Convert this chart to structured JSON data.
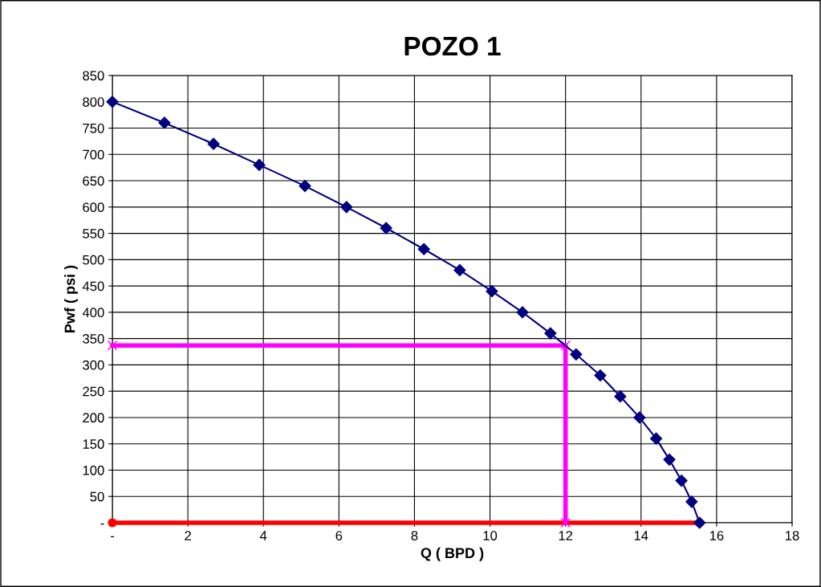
{
  "chart_data": {
    "type": "line",
    "title": "POZO 1",
    "xlabel": "Q ( BPD )",
    "ylabel": "Pwf ( psi )",
    "series": [
      {
        "color": "#ff0000",
        "marker": "circle",
        "x": [
          0,
          15.55
        ],
        "values": [
          0,
          0
        ]
      },
      {
        "color": "#ff00ff",
        "marker": "cross",
        "x": [
          0,
          12,
          12
        ],
        "values": [
          337,
          337,
          0
        ]
      },
      {
        "color": "#000080",
        "marker": "diamond",
        "x": [
          0,
          1.38,
          2.68,
          3.89,
          5.1,
          6.2,
          7.25,
          8.25,
          9.2,
          10.05,
          10.86,
          11.6,
          12.28,
          12.92,
          13.45,
          13.96,
          14.4,
          14.75,
          15.07,
          15.34,
          15.55
        ],
        "values": [
          800,
          760,
          720,
          680,
          640,
          600,
          560,
          520,
          480,
          440,
          400,
          360,
          320,
          280,
          240,
          200,
          160,
          120,
          80,
          40,
          0
        ]
      }
    ],
    "xlim": [
      0,
      18
    ],
    "xticks": [
      {
        "value": 0,
        "label": "-"
      },
      2,
      4,
      6,
      8,
      10,
      12,
      14,
      16,
      18
    ],
    "ylim": [
      0,
      850
    ],
    "yticks": [
      {
        "value": 0,
        "label": "-"
      },
      50,
      100,
      150,
      200,
      250,
      300,
      350,
      400,
      450,
      500,
      550,
      600,
      650,
      700,
      750,
      800,
      850
    ],
    "grid": true,
    "line_style": "solid"
  }
}
